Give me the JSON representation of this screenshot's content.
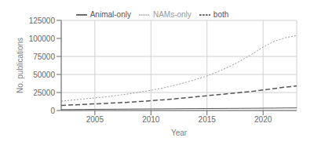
{
  "chart_data": {
    "type": "line",
    "x": [
      2002,
      2003,
      2004,
      2005,
      2006,
      2007,
      2008,
      2009,
      2010,
      2011,
      2012,
      2013,
      2014,
      2015,
      2016,
      2017,
      2018,
      2019,
      2020,
      2021,
      2022,
      2023
    ],
    "series": [
      {
        "name": "NAMs-only",
        "color": "#999999",
        "line_style": "dotted",
        "values": [
          13000,
          14500,
          16000,
          17500,
          19000,
          21000,
          23000,
          25500,
          28000,
          31000,
          34500,
          38500,
          43000,
          48000,
          54000,
          61000,
          69000,
          78000,
          88000,
          96000,
          101000,
          104000
        ]
      },
      {
        "name": "both",
        "color": "#555555",
        "line_style": "dashed",
        "values": [
          7000,
          7800,
          8500,
          9200,
          9900,
          10700,
          11500,
          12500,
          13500,
          14800,
          16000,
          17500,
          19000,
          20500,
          22000,
          23500,
          25000,
          26500,
          28500,
          30500,
          32500,
          34000
        ]
      },
      {
        "name": "Animal-only",
        "color": "#555555",
        "line_style": "solid",
        "values": [
          1200,
          1350,
          1500,
          1650,
          1800,
          1900,
          2000,
          2100,
          2200,
          2300,
          2400,
          2500,
          2600,
          2700,
          2800,
          2900,
          3000,
          3100,
          3200,
          3350,
          3500,
          3650
        ]
      }
    ],
    "xlabel": "Year",
    "ylabel": "No. publications",
    "xlim": [
      2002,
      2023
    ],
    "xticks": [
      2005,
      2010,
      2015,
      2020
    ],
    "ylim": [
      0,
      125000
    ],
    "yticks": [
      0,
      25000,
      50000,
      75000,
      100000,
      125000
    ],
    "grid": true,
    "legend": "top"
  }
}
